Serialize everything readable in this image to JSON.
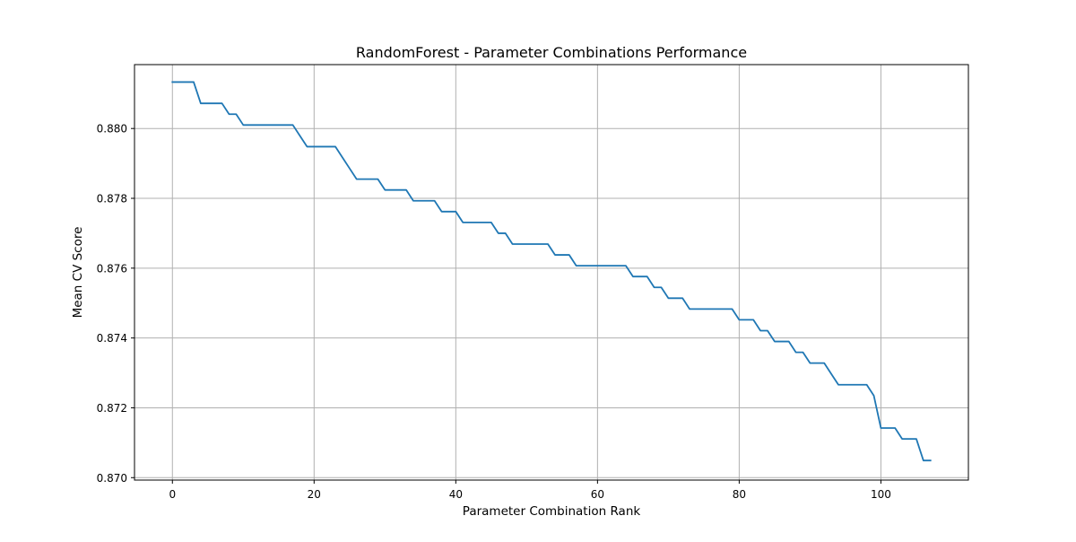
{
  "chart_data": {
    "type": "line",
    "title": "RandomForest - Parameter Combinations Performance",
    "xlabel": "Parameter Combination Rank",
    "ylabel": "Mean CV Score",
    "xlim": [
      -5.35,
      112.35
    ],
    "ylim": [
      0.86993,
      0.88183
    ],
    "xticks": [
      0,
      20,
      40,
      60,
      80,
      100
    ],
    "yticks": [
      0.87,
      0.872,
      0.874,
      0.876,
      0.878,
      0.88
    ],
    "xtick_labels": [
      "0",
      "20",
      "40",
      "60",
      "80",
      "100"
    ],
    "ytick_labels": [
      "0.870",
      "0.872",
      "0.874",
      "0.876",
      "0.878",
      "0.880"
    ],
    "grid": true,
    "series": [
      {
        "color": "#1f77b4",
        "x": [
          0,
          1,
          2,
          3,
          4,
          5,
          6,
          7,
          8,
          9,
          10,
          11,
          12,
          13,
          14,
          15,
          16,
          17,
          18,
          19,
          20,
          21,
          22,
          23,
          24,
          25,
          26,
          27,
          28,
          29,
          30,
          31,
          32,
          33,
          34,
          35,
          36,
          37,
          38,
          39,
          40,
          41,
          42,
          43,
          44,
          45,
          46,
          47,
          48,
          49,
          50,
          51,
          52,
          53,
          54,
          55,
          56,
          57,
          58,
          59,
          60,
          61,
          62,
          63,
          64,
          65,
          66,
          67,
          68,
          69,
          70,
          71,
          72,
          73,
          74,
          75,
          76,
          77,
          78,
          79,
          80,
          81,
          82,
          83,
          84,
          85,
          86,
          87,
          88,
          89,
          90,
          91,
          92,
          93,
          94,
          95,
          96,
          97,
          98,
          99,
          100,
          101,
          102,
          103,
          104,
          105,
          106,
          107
        ],
        "y": [
          0.88133,
          0.88133,
          0.88133,
          0.88133,
          0.88072,
          0.88072,
          0.88072,
          0.88072,
          0.88041,
          0.88041,
          0.8801,
          0.8801,
          0.8801,
          0.8801,
          0.8801,
          0.8801,
          0.8801,
          0.8801,
          0.87979,
          0.87948,
          0.87948,
          0.87948,
          0.87948,
          0.87948,
          0.87917,
          0.87886,
          0.87855,
          0.87855,
          0.87855,
          0.87855,
          0.87824,
          0.87824,
          0.87824,
          0.87824,
          0.87793,
          0.87793,
          0.87793,
          0.87793,
          0.87762,
          0.87762,
          0.87762,
          0.87731,
          0.87731,
          0.87731,
          0.87731,
          0.87731,
          0.877,
          0.877,
          0.87669,
          0.87669,
          0.87669,
          0.87669,
          0.87669,
          0.87669,
          0.87638,
          0.87638,
          0.87638,
          0.87607,
          0.87607,
          0.87607,
          0.87607,
          0.87607,
          0.87607,
          0.87607,
          0.87607,
          0.87576,
          0.87576,
          0.87576,
          0.87545,
          0.87545,
          0.87514,
          0.87514,
          0.87514,
          0.87483,
          0.87483,
          0.87483,
          0.87483,
          0.87483,
          0.87483,
          0.87483,
          0.87452,
          0.87452,
          0.87452,
          0.87421,
          0.87421,
          0.8739,
          0.8739,
          0.8739,
          0.87359,
          0.87359,
          0.87328,
          0.87328,
          0.87328,
          0.87297,
          0.87266,
          0.87266,
          0.87266,
          0.87266,
          0.87266,
          0.87235,
          0.87142,
          0.87142,
          0.87142,
          0.87111,
          0.87111,
          0.87111,
          0.87049,
          0.87049
        ]
      }
    ]
  }
}
